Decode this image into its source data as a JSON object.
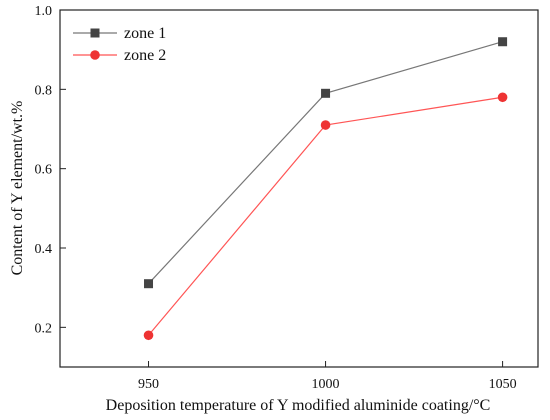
{
  "chart_data": {
    "type": "line",
    "title": "",
    "xlabel": "Deposition temperature of Y modified aluminide coating/°C",
    "ylabel": "Content of Y element/wt.%",
    "x": [
      950,
      1000,
      1050
    ],
    "xlim": [
      925,
      1060
    ],
    "ylim": [
      0.1,
      1.0
    ],
    "xticks": [
      "950",
      "1000",
      "1050"
    ],
    "yticks": [
      "0.2",
      "0.4",
      "0.6",
      "0.8",
      "1.0"
    ],
    "grid": false,
    "legend_position": "top-left",
    "series": [
      {
        "name": "zone 1",
        "values": [
          0.31,
          0.79,
          0.92
        ],
        "color": "#444444",
        "marker": "square",
        "line_color": "#777777"
      },
      {
        "name": "zone 2",
        "values": [
          0.18,
          0.71,
          0.78
        ],
        "color": "#ee3333",
        "marker": "circle",
        "line_color": "#ff5555"
      }
    ]
  }
}
